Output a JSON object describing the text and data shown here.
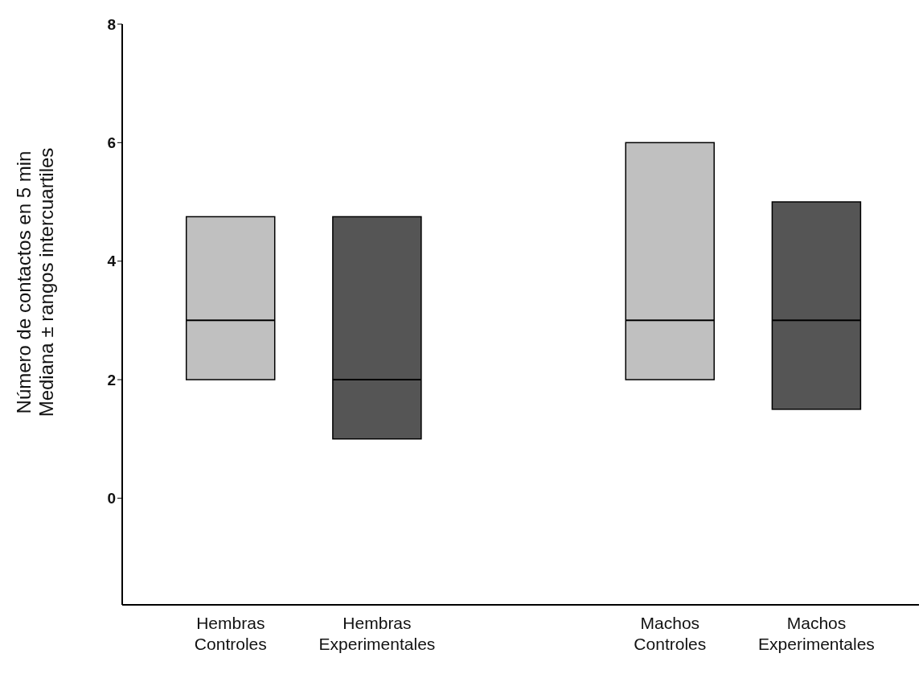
{
  "chart_data": {
    "type": "box",
    "ylabel": "Número de contactos en 5 min\nMediana ± rangos intercuartiles",
    "categories": [
      "Hembras\nControles",
      "Hembras\nExperimentales",
      "Machos\nControles",
      "Machos\nExperimentales"
    ],
    "boxes": [
      {
        "low": 2,
        "q1": 2,
        "median": 3,
        "q3": 4.75,
        "high": 4.75
      },
      {
        "low": 1,
        "q1": 1,
        "median": 2,
        "q3": 4.75,
        "high": 4.75
      },
      {
        "low": 2,
        "q1": 2,
        "median": 3,
        "q3": 6,
        "high": 6
      },
      {
        "low": 1.5,
        "q1": 1.5,
        "median": 3,
        "q3": 5,
        "high": 5
      }
    ],
    "colors": [
      "#c0c0c0",
      "#555555",
      "#c0c0c0",
      "#555555"
    ],
    "ylim": [
      -1.8,
      8
    ],
    "yticks": [
      0,
      2,
      4,
      6,
      8
    ],
    "grid": false
  }
}
